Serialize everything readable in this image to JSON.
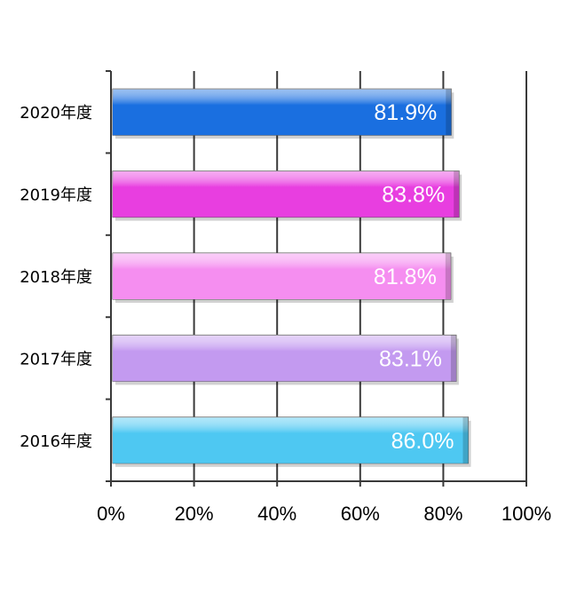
{
  "chart_data": {
    "type": "bar",
    "orientation": "horizontal",
    "categories": [
      "2020年度",
      "2019年度",
      "2018年度",
      "2017年度",
      "2016年度"
    ],
    "values": [
      81.9,
      83.8,
      81.8,
      83.1,
      86.0
    ],
    "value_labels": [
      "81.9%",
      "83.8%",
      "81.8%",
      "83.1%",
      "86.0%"
    ],
    "bar_colors": [
      "#1a6fe0",
      "#e83ee0",
      "#f58ef0",
      "#c39af0",
      "#4ec8f2"
    ],
    "xlim": [
      0,
      100
    ],
    "x_ticks": [
      0,
      20,
      40,
      60,
      80,
      100
    ],
    "x_tick_labels": [
      "0%",
      "20%",
      "40%",
      "60%",
      "80%",
      "100%"
    ],
    "grid": true,
    "title": "",
    "xlabel": "",
    "ylabel": ""
  }
}
